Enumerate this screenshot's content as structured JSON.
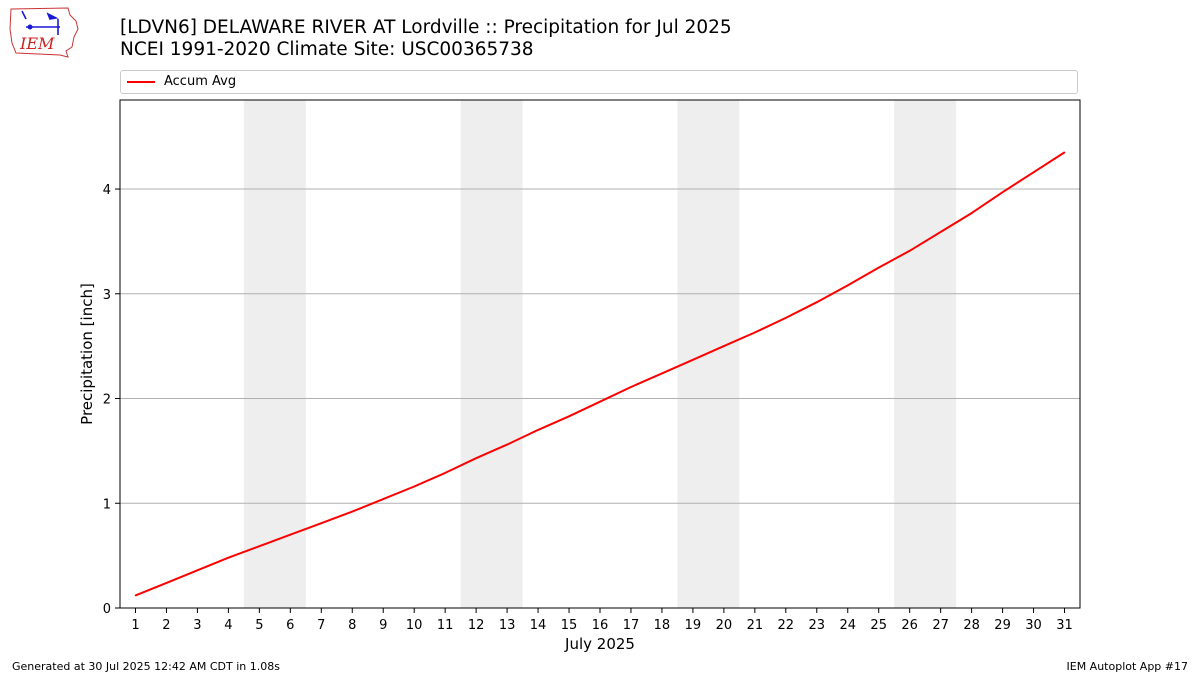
{
  "header": {
    "title_line1": "[LDVN6] DELAWARE RIVER  AT Lordville :: Precipitation for Jul 2025",
    "title_line2": "NCEI 1991-2020 Climate Site: USC00365738",
    "logo_text": "IEM"
  },
  "footer": {
    "generated": "Generated at 30 Jul 2025 12:42 AM CDT in 1.08s",
    "app": "IEM Autoplot App #17"
  },
  "chart_data": {
    "type": "line",
    "xlabel": "July 2025",
    "ylabel": "Precipitation [inch]",
    "xlim": [
      0.5,
      31.5
    ],
    "ylim": [
      0,
      4.85
    ],
    "yticks": [
      0,
      1,
      2,
      3,
      4
    ],
    "grid": "horizontal",
    "legend_position": "top",
    "x": [
      1,
      2,
      3,
      4,
      5,
      6,
      7,
      8,
      9,
      10,
      11,
      12,
      13,
      14,
      15,
      16,
      17,
      18,
      19,
      20,
      21,
      22,
      23,
      24,
      25,
      26,
      27,
      28,
      29,
      30,
      31
    ],
    "x_tick_labels": [
      "1",
      "2",
      "3",
      "4",
      "5",
      "6",
      "7",
      "8",
      "9",
      "10",
      "11",
      "12",
      "13",
      "14",
      "15",
      "16",
      "17",
      "18",
      "19",
      "20",
      "21",
      "22",
      "23",
      "24",
      "25",
      "26",
      "27",
      "28",
      "29",
      "30",
      "31"
    ],
    "series": [
      {
        "name": "Accum Avg",
        "color": "#ff0000",
        "values": [
          0.12,
          0.24,
          0.36,
          0.48,
          0.59,
          0.7,
          0.81,
          0.92,
          1.04,
          1.16,
          1.29,
          1.43,
          1.56,
          1.7,
          1.83,
          1.97,
          2.11,
          2.24,
          2.37,
          2.5,
          2.63,
          2.77,
          2.92,
          3.08,
          3.25,
          3.41,
          3.59,
          3.77,
          3.97,
          4.16,
          4.35
        ]
      }
    ],
    "weekend_bands": [
      [
        4.5,
        6.5
      ],
      [
        11.5,
        13.5
      ],
      [
        18.5,
        20.5
      ],
      [
        25.5,
        27.5
      ]
    ],
    "band_color": "#eeeeee",
    "grid_color": "#b0b0b0"
  }
}
